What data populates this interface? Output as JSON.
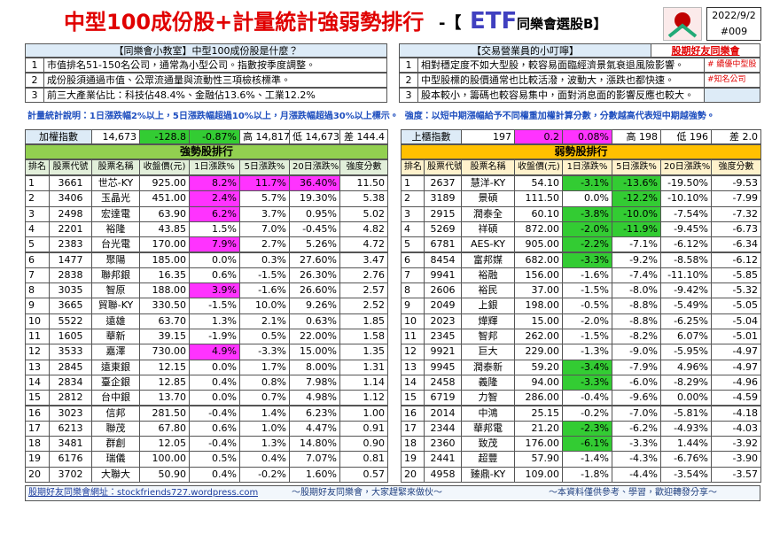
{
  "header": {
    "title": "中型100成份股+計量統計強弱勢排行",
    "dash": "-【",
    "etf": "ETF",
    "subtitle": "同樂會選股B】",
    "date": "2022/9/2",
    "issue": "#009"
  },
  "info": {
    "left": {
      "heading": "【同樂會小教室】中型100成份股是什麼？",
      "rows": [
        [
          "1",
          "市值排名51-150名公司，通常為小型公司。指數按季度調整。"
        ],
        [
          "2",
          "成份股須通過市值、公眾流通量與流動性三項檢核標準。"
        ],
        [
          "3",
          "前三大產業佔比：科技佔48.4%、金融佔13.6%、工業12.2%"
        ]
      ]
    },
    "right": {
      "heading": "【交易營業員的小叮嚀】",
      "link": "股期好友同樂會",
      "rows": [
        [
          "1",
          "相對穩定度不如大型股，較容易面臨經濟景氣衰退風險影響。",
          "# 續優中型股"
        ],
        [
          "2",
          "中型股標的股價通常也比較活潑，波動大，漲跌也都快速。",
          "#知名公司"
        ],
        [
          "3",
          "股本較小，籌碼也較容易集中，面對消息面的影響反應也較大。"
        ]
      ]
    }
  },
  "note": {
    "rule": "計量統計說明：1日漲跌幅2%以上，5日漲跌幅超過10%以上，月漲跌幅超過30%以上標示。",
    "strength": "強度：以短中期漲幅給予不同權重加權計算分數，分數越高代表短中期越強勢。"
  },
  "indices": [
    {
      "cells": [
        "加權指數",
        "14,673",
        "-128.8",
        "-0.87%",
        "高 14,817",
        "低 14,673",
        "差 144.4"
      ],
      "change_color": "#33cc33"
    },
    {
      "cells": [
        "上櫃指數",
        "197",
        "0.2",
        "0.08%",
        "高 198",
        "低 196",
        "差 2.0"
      ],
      "change_color": "#ff33ff"
    }
  ],
  "tables": [
    {
      "title": "強勢股排行",
      "title_color": "#92d050",
      "header_color": "#e2efda",
      "highlight_color": "#ff33ff",
      "columns": [
        "排名",
        "股票代號",
        "股票名稱",
        "收盤價(元)",
        "1日漲跌%",
        "5日漲跌%",
        "20日漲跌%",
        "強度分數"
      ],
      "highlight_cells": [
        [
          0,
          4
        ],
        [
          0,
          5
        ],
        [
          0,
          6
        ],
        [
          1,
          4
        ],
        [
          2,
          4
        ],
        [
          4,
          4
        ],
        [
          7,
          4
        ],
        [
          11,
          4
        ]
      ],
      "rows": [
        [
          "1",
          "3661",
          "世芯-KY",
          "925.00",
          "8.2%",
          "11.7%",
          "36.40%",
          "11.50"
        ],
        [
          "2",
          "3406",
          "玉晶光",
          "451.00",
          "2.4%",
          "5.7%",
          "19.30%",
          "5.38"
        ],
        [
          "3",
          "2498",
          "宏達電",
          "63.90",
          "6.2%",
          "3.7%",
          "0.95%",
          "5.02"
        ],
        [
          "4",
          "2201",
          "裕隆",
          "43.85",
          "1.5%",
          "7.0%",
          "-0.45%",
          "4.82"
        ],
        [
          "5",
          "2383",
          "台光電",
          "170.00",
          "7.9%",
          "2.7%",
          "5.26%",
          "4.72"
        ],
        [
          "6",
          "1477",
          "聚陽",
          "185.00",
          "0.0%",
          "0.3%",
          "27.60%",
          "3.47"
        ],
        [
          "7",
          "2838",
          "聯邦銀",
          "16.35",
          "0.6%",
          "-1.5%",
          "26.30%",
          "2.76"
        ],
        [
          "8",
          "3035",
          "智原",
          "188.00",
          "3.9%",
          "-1.6%",
          "26.60%",
          "2.57"
        ],
        [
          "9",
          "3665",
          "貿聯-KY",
          "330.50",
          "-1.5%",
          "10.0%",
          "9.26%",
          "2.52"
        ],
        [
          "10",
          "5522",
          "遠雄",
          "63.70",
          "1.3%",
          "2.1%",
          "0.63%",
          "1.85"
        ],
        [
          "11",
          "1605",
          "華新",
          "39.15",
          "-1.9%",
          "0.5%",
          "22.00%",
          "1.58"
        ],
        [
          "12",
          "3533",
          "嘉澤",
          "730.00",
          "4.9%",
          "-3.3%",
          "15.00%",
          "1.35"
        ],
        [
          "13",
          "2845",
          "遠東銀",
          "12.15",
          "0.0%",
          "1.7%",
          "8.00%",
          "1.31"
        ],
        [
          "14",
          "2834",
          "臺企銀",
          "12.85",
          "0.4%",
          "0.8%",
          "7.98%",
          "1.14"
        ],
        [
          "15",
          "2812",
          "台中銀",
          "13.70",
          "0.0%",
          "0.7%",
          "4.98%",
          "1.12"
        ],
        [
          "16",
          "3023",
          "信邦",
          "281.50",
          "-0.4%",
          "1.4%",
          "6.23%",
          "1.00"
        ],
        [
          "17",
          "6213",
          "聯茂",
          "67.80",
          "0.6%",
          "1.0%",
          "4.47%",
          "0.91"
        ],
        [
          "18",
          "3481",
          "群創",
          "12.05",
          "-0.4%",
          "1.3%",
          "14.80%",
          "0.90"
        ],
        [
          "19",
          "6176",
          "瑞儀",
          "100.00",
          "0.5%",
          "0.4%",
          "7.07%",
          "0.81"
        ],
        [
          "20",
          "3702",
          "大聯大",
          "50.90",
          "0.4%",
          "-0.2%",
          "1.60%",
          "0.57"
        ]
      ]
    },
    {
      "title": "弱勢股排行",
      "title_color": "#ffc000",
      "header_color": "#fff2cc",
      "highlight_color": "#33cc33",
      "columns": [
        "排名",
        "股票代號",
        "股票名稱",
        "收盤價(元)",
        "1日漲跌%",
        "5日漲跌%",
        "20日漲跌%",
        "強度分數"
      ],
      "highlight_cells": [
        [
          0,
          4
        ],
        [
          2,
          4
        ],
        [
          3,
          4
        ],
        [
          4,
          4
        ],
        [
          5,
          4
        ],
        [
          12,
          4
        ],
        [
          13,
          4
        ],
        [
          16,
          4
        ],
        [
          17,
          4
        ],
        [
          0,
          5
        ],
        [
          1,
          5
        ],
        [
          2,
          5
        ],
        [
          3,
          5
        ]
      ],
      "rows": [
        [
          "1",
          "2637",
          "慧洋-KY",
          "54.10",
          "-3.1%",
          "-13.6%",
          "-19.50%",
          "-9.53"
        ],
        [
          "2",
          "3189",
          "景碩",
          "111.50",
          "0.0%",
          "-12.2%",
          "-10.10%",
          "-7.99"
        ],
        [
          "3",
          "2915",
          "潤泰全",
          "60.10",
          "-3.8%",
          "-10.0%",
          "-7.54%",
          "-7.32"
        ],
        [
          "4",
          "5269",
          "祥碩",
          "872.00",
          "-2.0%",
          "-11.9%",
          "-9.45%",
          "-6.73"
        ],
        [
          "5",
          "6781",
          "AES-KY",
          "905.00",
          "-2.2%",
          "-7.1%",
          "-6.12%",
          "-6.34"
        ],
        [
          "6",
          "8454",
          "富邦媒",
          "682.00",
          "-3.3%",
          "-9.2%",
          "-8.58%",
          "-6.12"
        ],
        [
          "7",
          "9941",
          "裕融",
          "156.00",
          "-1.6%",
          "-7.4%",
          "-11.10%",
          "-5.85"
        ],
        [
          "8",
          "2606",
          "裕民",
          "37.00",
          "-1.5%",
          "-8.0%",
          "-9.42%",
          "-5.32"
        ],
        [
          "9",
          "2049",
          "上銀",
          "198.00",
          "-0.5%",
          "-8.8%",
          "-5.49%",
          "-5.05"
        ],
        [
          "10",
          "2023",
          "燁輝",
          "15.00",
          "-2.0%",
          "-8.8%",
          "-6.25%",
          "-5.04"
        ],
        [
          "11",
          "2345",
          "智邦",
          "262.00",
          "-1.5%",
          "-8.2%",
          "6.07%",
          "-5.01"
        ],
        [
          "12",
          "9921",
          "巨大",
          "229.00",
          "-1.3%",
          "-9.0%",
          "-5.95%",
          "-4.97"
        ],
        [
          "13",
          "9945",
          "潤泰新",
          "59.20",
          "-3.4%",
          "-7.9%",
          "4.96%",
          "-4.97"
        ],
        [
          "14",
          "2458",
          "義隆",
          "94.00",
          "-3.3%",
          "-6.0%",
          "-8.29%",
          "-4.96"
        ],
        [
          "15",
          "6719",
          "力智",
          "286.00",
          "-0.4%",
          "-9.6%",
          "0.00%",
          "-4.59"
        ],
        [
          "16",
          "2014",
          "中鴻",
          "25.15",
          "-0.2%",
          "-7.0%",
          "-5.81%",
          "-4.18"
        ],
        [
          "17",
          "2344",
          "華邦電",
          "21.20",
          "-2.3%",
          "-6.2%",
          "-4.93%",
          "-4.03"
        ],
        [
          "18",
          "2360",
          "致茂",
          "176.00",
          "-6.1%",
          "-3.3%",
          "1.44%",
          "-3.92"
        ],
        [
          "19",
          "2441",
          "超豐",
          "57.90",
          "-1.4%",
          "-4.3%",
          "-6.76%",
          "-3.90"
        ],
        [
          "20",
          "4958",
          "臻鼎-KY",
          "109.00",
          "-1.8%",
          "-4.4%",
          "-3.54%",
          "-3.57"
        ]
      ]
    }
  ],
  "footer": {
    "site": "股期好友同樂會網址：stockfriends727.wordpress.com",
    "center": "～股期好友同樂會，大家趕緊來做伙～",
    "right": "～本資料僅供參考、學習，歡迎轉發分享～"
  }
}
